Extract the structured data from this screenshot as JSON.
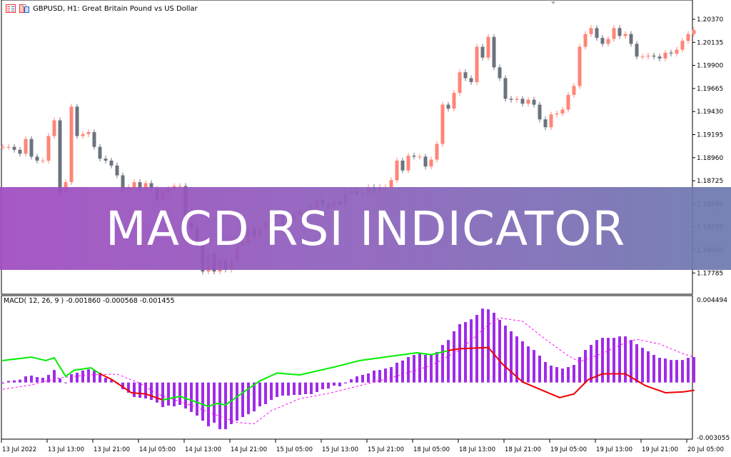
{
  "window": {
    "title": "GBPUSD, H1:  Great Britain Pound vs US Dollar",
    "icons": [
      "indicator-list-icon",
      "template-icon"
    ]
  },
  "banner": {
    "text": "MACD RSI INDICATOR",
    "color_start": "#a04cc0",
    "color_end": "#6c7aae"
  },
  "macd_panel": {
    "label": "MACD( 12, 26, 9 ) -0.001860 -0.000568 -0.001455",
    "axis_max": "0.004494",
    "axis_min": "-0.003055"
  },
  "colors": {
    "bull": "#ff8577",
    "bear": "#6b737d",
    "histogram": "#a02be8",
    "signal": "#ff00ff",
    "line_up": "#00ee00",
    "line_down": "#ee0000"
  },
  "chart_data": [
    {
      "type": "candlestick",
      "price_ticks": [
        "1.20370",
        "1.20135",
        "1.19900",
        "1.19665",
        "1.19430",
        "1.19195",
        "1.18960",
        "1.18725",
        "1.18490",
        "1.18255",
        "1.18020",
        "1.17785"
      ],
      "time_ticks": [
        "13 Jul 2022",
        "13 Jul 13:00",
        "13 Jul 21:00",
        "14 Jul 05:00",
        "14 Jul 13:00",
        "14 Jul 21:00",
        "15 Jul 05:00",
        "15 Jul 13:00",
        "15 Jul 21:00",
        "18 Jul 05:00",
        "18 Jul 13:00",
        "18 Jul 21:00",
        "19 Jul 05:00",
        "19 Jul 13:00",
        "19 Jul 21:00",
        "20 Jul 05:00"
      ],
      "ylim": [
        1.177,
        1.2075
      ],
      "closes": [
        1.1907,
        1.1907,
        1.1904,
        1.19,
        1.1915,
        1.1897,
        1.1893,
        1.1893,
        1.1918,
        1.1934,
        1.186,
        1.1871,
        1.1948,
        1.1918,
        1.192,
        1.1922,
        1.1907,
        1.1895,
        1.1893,
        1.1888,
        1.1878,
        1.1864,
        1.1866,
        1.1871,
        1.1864,
        1.187,
        1.1864,
        1.1853,
        1.186,
        1.1864,
        1.1867,
        1.1867,
        1.183,
        1.1824,
        1.1806,
        1.178,
        1.1798,
        1.178,
        1.1791,
        1.1782,
        1.1791,
        1.1806,
        1.1809,
        1.1824,
        1.1816,
        1.1824,
        1.1831,
        1.1835,
        1.1838,
        1.1827,
        1.1833,
        1.1838,
        1.1842,
        1.1842,
        1.1846,
        1.1853,
        1.1849,
        1.1846,
        1.1851,
        1.1849,
        1.186,
        1.1862,
        1.1859,
        1.186,
        1.1866,
        1.1862,
        1.1866,
        1.1866,
        1.1873,
        1.1893,
        1.1883,
        1.1898,
        1.1897,
        1.1897,
        1.1887,
        1.1894,
        1.191,
        1.195,
        1.1946,
        1.1962,
        1.1983,
        1.1977,
        1.1973,
        1.2009,
        1.1998,
        1.2019,
        1.1988,
        1.1977,
        1.1956,
        1.1955,
        1.1956,
        1.1951,
        1.1955,
        1.195,
        1.1935,
        1.1927,
        1.194,
        1.1941,
        1.1945,
        1.196,
        1.1969,
        1.2009,
        1.2022,
        1.2028,
        1.2018,
        1.2012,
        1.2017,
        1.2028,
        1.202,
        1.2022,
        1.2012,
        1.1999,
        1.1999,
        1.2,
        1.1999,
        1.1997,
        1.2003,
        1.2002,
        1.2006,
        1.2015,
        1.2022,
        1.2026
      ]
    },
    {
      "type": "bar",
      "name": "MACD",
      "ylim": [
        -0.003055,
        0.004494
      ],
      "histogram": [
        -5e-05,
        9e-05,
        0.00012,
        0.00016,
        0.00034,
        0.00038,
        0.0003,
        0.00026,
        0.00042,
        0.00069,
        0.00022,
        -1e-05,
        0.00046,
        0.00054,
        0.00066,
        0.00073,
        0.00066,
        0.00054,
        0.00026,
        0.00014,
        -1e-05,
        -0.00037,
        -0.00056,
        -0.0008,
        -0.00084,
        -0.00088,
        -0.00096,
        -0.0011,
        -0.00135,
        -0.00127,
        -0.00131,
        -0.00123,
        -0.00143,
        -0.00162,
        -0.00182,
        -0.0021,
        -0.00241,
        -0.00221,
        -0.00257,
        -0.00257,
        -0.00229,
        -0.0021,
        -0.0019,
        -0.00174,
        -0.00159,
        -0.00131,
        -0.00119,
        -0.00096,
        -0.0008,
        -0.00072,
        -0.00072,
        -0.00068,
        -0.00068,
        -0.00064,
        -0.00064,
        -0.00052,
        -0.00037,
        -0.00033,
        -0.00017,
        -0.00021,
        -5e-05,
        0.00018,
        0.00034,
        0.00042,
        0.0005,
        0.00066,
        0.00069,
        0.00077,
        0.00085,
        0.00109,
        0.00121,
        0.0014,
        0.00152,
        0.00164,
        0.00152,
        0.00152,
        0.00168,
        0.00207,
        0.00234,
        0.00282,
        0.00321,
        0.00333,
        0.00348,
        0.00372,
        0.00407,
        0.00403,
        0.00384,
        0.00345,
        0.00313,
        0.00282,
        0.00254,
        0.00227,
        0.00199,
        0.00179,
        0.00148,
        0.00113,
        0.00093,
        0.00085,
        0.00077,
        0.00085,
        0.00097,
        0.0014,
        0.00179,
        0.00207,
        0.00234,
        0.00246,
        0.00246,
        0.00246,
        0.00254,
        0.00254,
        0.00234,
        0.00211,
        0.00191,
        0.00172,
        0.00152,
        0.00136,
        0.00132,
        0.00124,
        0.00124,
        0.00124,
        0.00136,
        0.0014
      ],
      "signal": [
        [
          0,
          -0.00037
        ],
        [
          5,
          -0.00013
        ],
        [
          10,
          0.00026
        ],
        [
          15,
          0.00042
        ],
        [
          20,
          0.00046
        ],
        [
          24,
          -4e-05
        ],
        [
          27,
          -0.00063
        ],
        [
          32,
          -0.00115
        ],
        [
          37,
          -0.00174
        ],
        [
          41,
          -0.0022
        ],
        [
          44,
          -0.00227
        ],
        [
          47,
          -0.00155
        ],
        [
          52,
          -0.00089
        ],
        [
          57,
          -0.0006
        ],
        [
          62,
          -0.00021
        ],
        [
          69,
          0.00035
        ],
        [
          75,
          0.00094
        ],
        [
          80,
          0.00179
        ],
        [
          85,
          0.00317
        ],
        [
          87,
          0.00356
        ],
        [
          91,
          0.00337
        ],
        [
          95,
          0.00238
        ],
        [
          99,
          0.00147
        ],
        [
          101,
          0.00114
        ],
        [
          105,
          0.0016
        ],
        [
          109,
          0.00219
        ],
        [
          111,
          0.00238
        ],
        [
          115,
          0.00212
        ],
        [
          119,
          0.0016
        ],
        [
          121,
          0.0014
        ]
      ],
      "line": [
        [
          0,
          0.00121
        ],
        [
          5,
          0.0014
        ],
        [
          7.5,
          0.00121
        ],
        [
          9,
          0.00136
        ],
        [
          11,
          0.00034
        ],
        [
          12.5,
          0.00068
        ],
        [
          15.4,
          0.00081
        ],
        [
          17,
          0.00048
        ],
        [
          19,
          0.00018
        ],
        [
          22.5,
          -0.00056
        ],
        [
          25,
          -0.00063
        ],
        [
          28,
          -0.00096
        ],
        [
          31,
          -0.00076
        ],
        [
          36,
          -0.00131
        ],
        [
          37.5,
          -0.00115
        ],
        [
          39,
          -0.00123
        ],
        [
          41.7,
          -0.00063
        ],
        [
          45,
          9e-05
        ],
        [
          48,
          0.00052
        ],
        [
          52,
          0.00042
        ],
        [
          58,
          0.00085
        ],
        [
          62.5,
          0.00121
        ],
        [
          72.5,
          0.00164
        ],
        [
          75,
          0.00153
        ],
        [
          78,
          0.00176
        ],
        [
          80,
          0.00186
        ],
        [
          85,
          0.00193
        ],
        [
          87.5,
          0.00101
        ],
        [
          91,
          3e-05
        ],
        [
          95,
          -0.0005
        ],
        [
          97.5,
          -0.00083
        ],
        [
          100,
          -0.00063
        ],
        [
          102.5,
          0.00016
        ],
        [
          105,
          0.00048
        ],
        [
          109,
          0.00048
        ],
        [
          112.5,
          -0.00017
        ],
        [
          116,
          -0.00056
        ],
        [
          119,
          -0.00052
        ],
        [
          121,
          -0.00043
        ]
      ],
      "line_down_ranges": [
        [
          17,
          28
        ],
        [
          78,
          121
        ]
      ]
    }
  ]
}
